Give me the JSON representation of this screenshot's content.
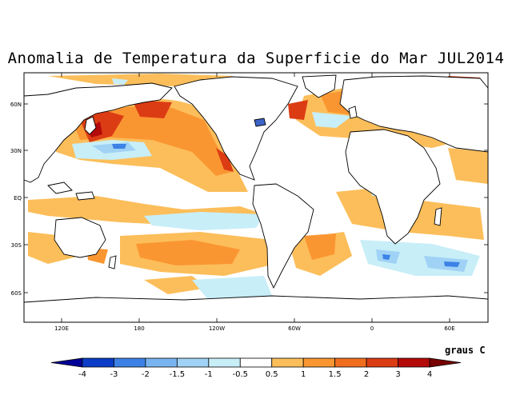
{
  "title": "Anomalia de Temperatura da Superficie do Mar JUL2014",
  "map": {
    "lat_labels": [
      "60N",
      "30N",
      "EQ",
      "30S",
      "60S"
    ],
    "lon_labels": [
      "120E",
      "180",
      "120W",
      "60W",
      "0",
      "60E"
    ]
  },
  "colorbar": {
    "units": "graus C",
    "labels": [
      "-4",
      "-3",
      "-2",
      "-1.5",
      "-1",
      "-0.5",
      "0.5",
      "1",
      "1.5",
      "2",
      "3",
      "4"
    ],
    "colors": [
      "#000096",
      "#0a3cc8",
      "#3c82e6",
      "#78b4f0",
      "#a0d2f5",
      "#c8eef8",
      "#ffffff",
      "#fcbe5a",
      "#fa9632",
      "#f06e1e",
      "#dc3c14",
      "#b40a0a",
      "#780000"
    ]
  }
}
